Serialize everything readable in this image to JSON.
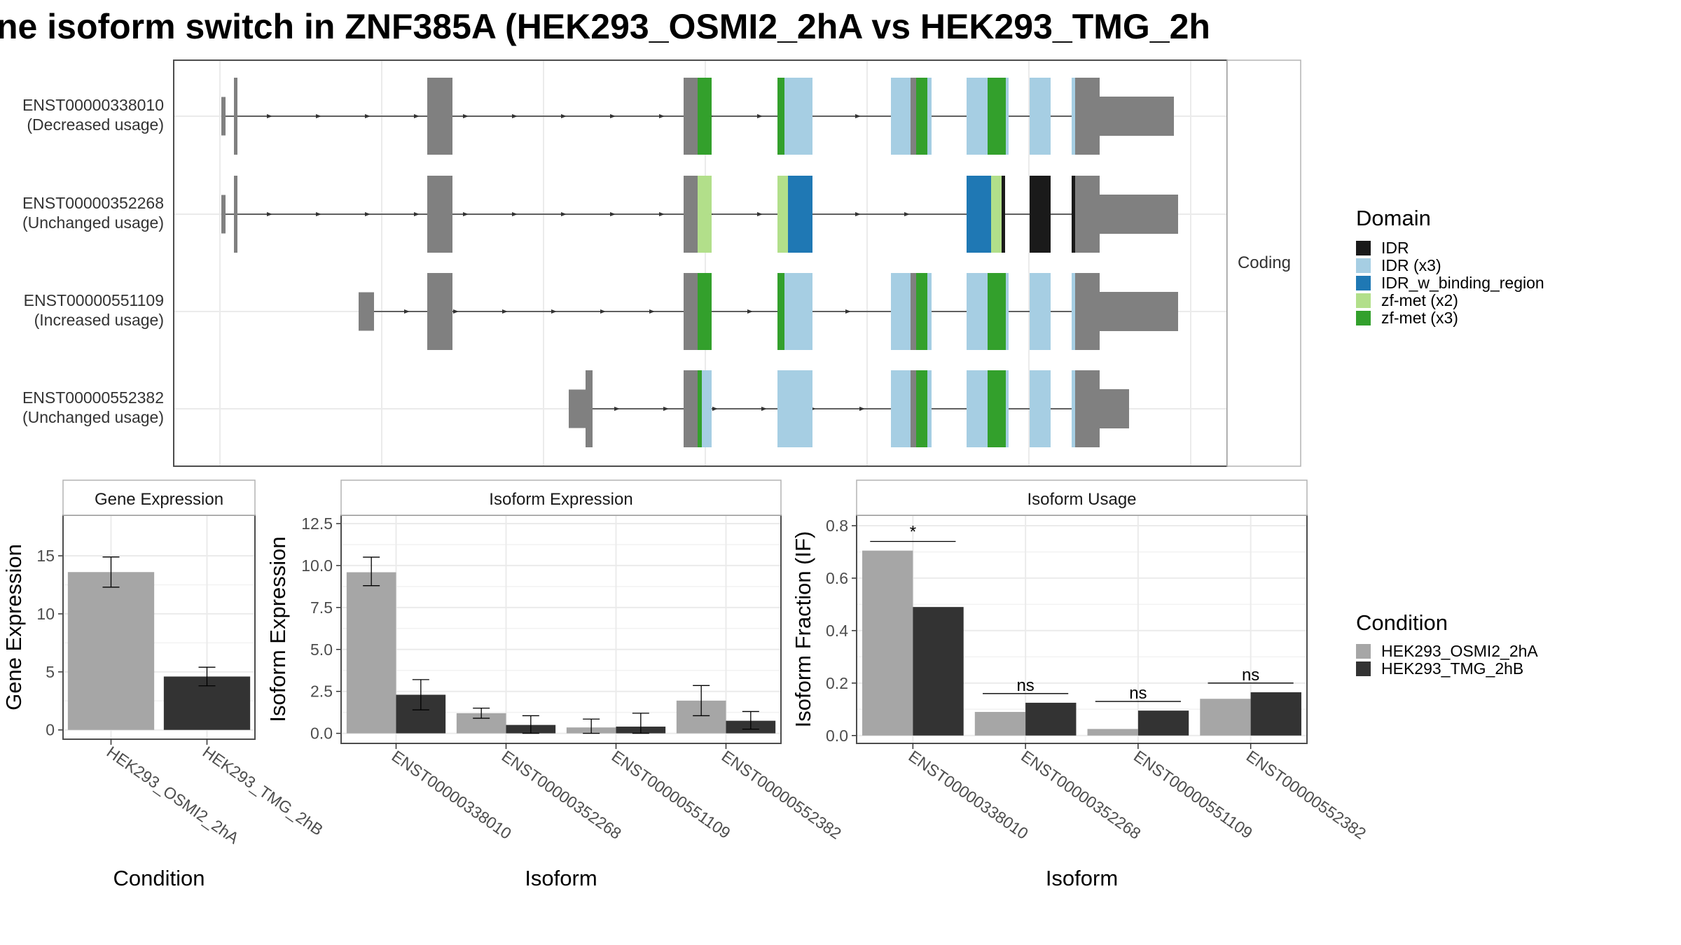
{
  "figure": {
    "title": "ne isoform switch in ZNF385A (HEK293_OSMI2_2hA vs HEK293_TMG_2h",
    "colors": {
      "cond_a": "#A6A6A6",
      "cond_b": "#333333",
      "exon": "#808080",
      "panel_border": "#4d4d4d",
      "grid": "#ebebeb",
      "strip_fill": "#ffffff"
    }
  },
  "chart_data": [
    {
      "type": "gene-structure",
      "strip_label": "Coding",
      "isoforms": [
        {
          "id": "ENST00000338010",
          "usage": "(Decreased usage)",
          "segments": [
            "exon",
            "exon",
            "exon",
            "zf-met (x3)",
            "zf-met (x3)",
            "IDR (x3)",
            "IDR (x3)",
            "zf-met (x3)",
            "IDR (x3)",
            "zf-met (x3)",
            "IDR (x3)",
            "exon"
          ]
        },
        {
          "id": "ENST00000352268",
          "usage": "(Unchanged usage)",
          "segments": [
            "exon",
            "exon",
            "exon",
            "zf-met (x2)",
            "zf-met (x2)",
            "IDR_w_binding_region",
            "IDR_w_binding_region",
            "zf-met (x2)",
            "IDR",
            "IDR",
            "IDR",
            "exon"
          ]
        },
        {
          "id": "ENST00000551109",
          "usage": "(Increased usage)",
          "segments": [
            "exon",
            "exon",
            "exon",
            "zf-met (x3)",
            "zf-met (x3)",
            "IDR (x3)",
            "IDR (x3)",
            "zf-met (x3)",
            "IDR (x3)",
            "zf-met (x3)",
            "IDR (x3)",
            "exon"
          ]
        },
        {
          "id": "ENST00000552382",
          "usage": "(Unchanged usage)",
          "segments": [
            "exon",
            "exon",
            "zf-met (x3)",
            "IDR (x3)",
            "IDR (x3)",
            "zf-met (x3)",
            "IDR (x3)",
            "zf-met (x3)",
            "IDR (x3)",
            "exon"
          ]
        }
      ],
      "legend": {
        "title": "Domain",
        "entries": [
          {
            "label": "IDR",
            "color": "#1A1A1A"
          },
          {
            "label": "IDR (x3)",
            "color": "#A6CEE3"
          },
          {
            "label": "IDR_w_binding_region",
            "color": "#1F78B4"
          },
          {
            "label": "zf-met (x2)",
            "color": "#B2DF8A"
          },
          {
            "label": "zf-met (x3)",
            "color": "#33A02C"
          }
        ]
      }
    },
    {
      "type": "bar",
      "strip_label": "Gene Expression",
      "xlabel": "Condition",
      "ylabel": "Gene Expression",
      "ylim": [
        -0.8,
        18.5
      ],
      "yticks": [
        0,
        5,
        10,
        15
      ],
      "ytick_labels": [
        "0",
        "5",
        "10",
        "15"
      ],
      "categories": [
        "HEK293_OSMI2_2hA",
        "HEK293_TMG_2hB"
      ],
      "values": [
        13.6,
        4.6
      ],
      "errors": [
        [
          12.3,
          14.9
        ],
        [
          3.8,
          5.4
        ]
      ]
    },
    {
      "type": "bar",
      "strip_label": "Isoform Expression",
      "xlabel": "Isoform",
      "ylabel": "Isoform Expression",
      "ylim": [
        -0.6,
        13.0
      ],
      "yticks": [
        0,
        2.5,
        5,
        7.5,
        10,
        12.5
      ],
      "ytick_labels": [
        "0.0",
        "2.5",
        "5.0",
        "7.5",
        "10.0",
        "12.5"
      ],
      "categories": [
        "ENST00000338010",
        "ENST00000352268",
        "ENST00000551109",
        "ENST00000552382"
      ],
      "series": [
        {
          "name": "HEK293_OSMI2_2hA",
          "values": [
            9.6,
            1.2,
            0.35,
            1.95
          ],
          "errors": [
            [
              8.8,
              10.5
            ],
            [
              0.9,
              1.5
            ],
            [
              0.0,
              0.85
            ],
            [
              1.05,
              2.85
            ]
          ]
        },
        {
          "name": "HEK293_TMG_2hB",
          "values": [
            2.3,
            0.5,
            0.4,
            0.75
          ],
          "errors": [
            [
              1.4,
              3.2
            ],
            [
              0.0,
              1.05
            ],
            [
              0.0,
              1.2
            ],
            [
              0.25,
              1.3
            ]
          ]
        }
      ]
    },
    {
      "type": "bar",
      "strip_label": "Isoform Usage",
      "xlabel": "Isoform",
      "ylabel": "Isoform Fraction (IF)",
      "ylim": [
        -0.03,
        0.84
      ],
      "yticks": [
        0,
        0.2,
        0.4,
        0.6,
        0.8
      ],
      "ytick_labels": [
        "0.0",
        "0.2",
        "0.4",
        "0.6",
        "0.8"
      ],
      "categories": [
        "ENST00000338010",
        "ENST00000352268",
        "ENST00000551109",
        "ENST00000552382"
      ],
      "series": [
        {
          "name": "HEK293_OSMI2_2hA",
          "values": [
            0.705,
            0.09,
            0.025,
            0.14
          ]
        },
        {
          "name": "HEK293_TMG_2hB",
          "values": [
            0.49,
            0.125,
            0.095,
            0.165
          ]
        }
      ],
      "significance": [
        {
          "label": "*",
          "y": 0.74
        },
        {
          "label": "ns",
          "y": 0.16
        },
        {
          "label": "ns",
          "y": 0.13
        },
        {
          "label": "ns",
          "y": 0.2
        }
      ]
    }
  ],
  "condition_legend": {
    "title": "Condition",
    "entries": [
      {
        "label": "HEK293_OSMI2_2hA",
        "color": "#A6A6A6"
      },
      {
        "label": "HEK293_TMG_2hB",
        "color": "#333333"
      }
    ]
  }
}
